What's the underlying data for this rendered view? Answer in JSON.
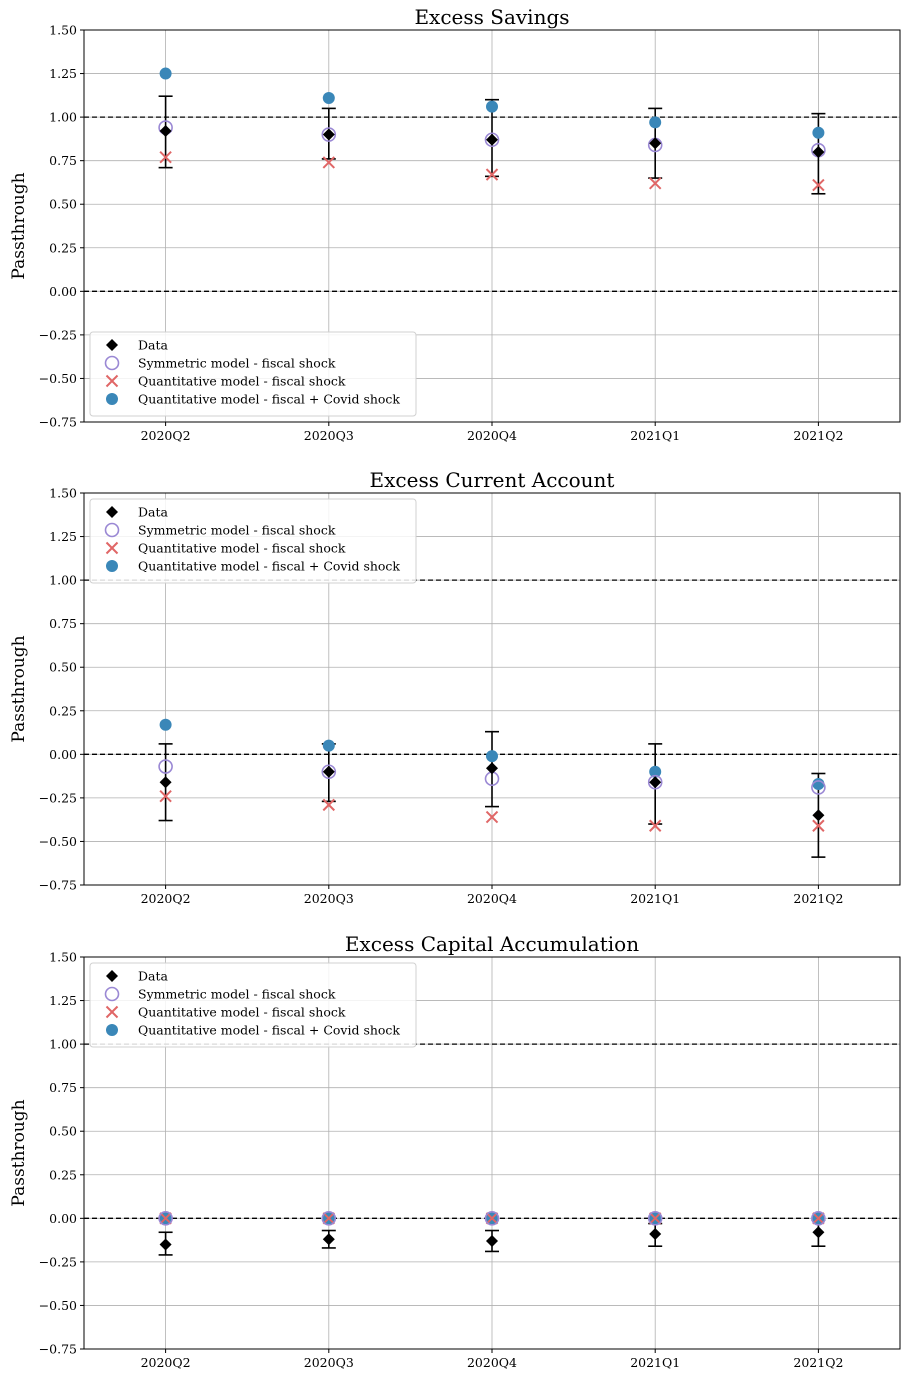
{
  "figure": {
    "legend_labels": [
      "Data",
      "Symmetric model - fiscal shock",
      "Quantitative model - fiscal shock",
      "Quantitative model - fiscal + Covid shock"
    ],
    "colors": {
      "data": "#000000",
      "symmetric": "#9a88d4",
      "quantitative": "#e06666",
      "covid": "#3a87b8",
      "grid": "#b0b0b0"
    }
  },
  "chart_data": [
    {
      "type": "scatter",
      "title": "Excess Savings",
      "ylabel": "Passthrough",
      "xlabel": "",
      "categories": [
        "2020Q2",
        "2020Q3",
        "2020Q4",
        "2021Q1",
        "2021Q2"
      ],
      "ylim": [
        -0.75,
        1.5
      ],
      "yticks": [
        "1.50",
        "1.25",
        "1.00",
        "0.75",
        "0.50",
        "0.25",
        "0.00",
        "−0.25",
        "−0.50",
        "−0.75"
      ],
      "ytick_values": [
        1.5,
        1.25,
        1.0,
        0.75,
        0.5,
        0.25,
        0.0,
        -0.25,
        -0.5,
        -0.75
      ],
      "reference_lines": [
        1.0,
        0.0
      ],
      "grid": true,
      "legend_position": "lower-left",
      "series": [
        {
          "name": "Data",
          "values": [
            0.92,
            0.9,
            0.87,
            0.85,
            0.8
          ],
          "error_low": [
            0.71,
            0.76,
            0.66,
            0.65,
            0.56
          ],
          "error_high": [
            1.12,
            1.05,
            1.1,
            1.05,
            1.02
          ]
        },
        {
          "name": "Symmetric model - fiscal shock",
          "values": [
            0.94,
            0.9,
            0.87,
            0.84,
            0.81
          ]
        },
        {
          "name": "Quantitative model - fiscal shock",
          "values": [
            0.77,
            0.74,
            0.67,
            0.62,
            0.61
          ]
        },
        {
          "name": "Quantitative model - fiscal + Covid shock",
          "values": [
            1.25,
            1.11,
            1.06,
            0.97,
            0.91
          ]
        }
      ]
    },
    {
      "type": "scatter",
      "title": "Excess Current Account",
      "ylabel": "Passthrough",
      "xlabel": "",
      "categories": [
        "2020Q2",
        "2020Q3",
        "2020Q4",
        "2021Q1",
        "2021Q2"
      ],
      "ylim": [
        -0.75,
        1.5
      ],
      "yticks": [
        "1.50",
        "1.25",
        "1.00",
        "0.75",
        "0.50",
        "0.25",
        "0.00",
        "−0.25",
        "−0.50",
        "−0.75"
      ],
      "ytick_values": [
        1.5,
        1.25,
        1.0,
        0.75,
        0.5,
        0.25,
        0.0,
        -0.25,
        -0.5,
        -0.75
      ],
      "reference_lines": [
        1.0,
        0.0
      ],
      "grid": true,
      "legend_position": "upper-left",
      "series": [
        {
          "name": "Data",
          "values": [
            -0.16,
            -0.1,
            -0.08,
            -0.16,
            -0.35
          ],
          "error_low": [
            -0.38,
            -0.27,
            -0.3,
            -0.4,
            -0.59
          ],
          "error_high": [
            0.06,
            0.06,
            0.13,
            0.06,
            -0.11
          ]
        },
        {
          "name": "Symmetric model - fiscal shock",
          "values": [
            -0.07,
            -0.1,
            -0.14,
            -0.16,
            -0.19
          ]
        },
        {
          "name": "Quantitative model - fiscal shock",
          "values": [
            -0.24,
            -0.29,
            -0.36,
            -0.41,
            -0.41
          ]
        },
        {
          "name": "Quantitative model - fiscal + Covid shock",
          "values": [
            0.17,
            0.05,
            -0.01,
            -0.1,
            -0.17
          ]
        }
      ]
    },
    {
      "type": "scatter",
      "title": "Excess Capital Accumulation",
      "ylabel": "Passthrough",
      "xlabel": "",
      "categories": [
        "2020Q2",
        "2020Q3",
        "2020Q4",
        "2021Q1",
        "2021Q2"
      ],
      "ylim": [
        -0.75,
        1.5
      ],
      "yticks": [
        "1.50",
        "1.25",
        "1.00",
        "0.75",
        "0.50",
        "0.25",
        "0.00",
        "−0.25",
        "−0.50",
        "−0.75"
      ],
      "ytick_values": [
        1.5,
        1.25,
        1.0,
        0.75,
        0.5,
        0.25,
        0.0,
        -0.25,
        -0.5,
        -0.75
      ],
      "reference_lines": [
        1.0,
        0.0
      ],
      "grid": true,
      "legend_position": "upper-left",
      "series": [
        {
          "name": "Data",
          "values": [
            -0.15,
            -0.12,
            -0.13,
            -0.09,
            -0.08
          ],
          "error_low": [
            -0.21,
            -0.17,
            -0.19,
            -0.16,
            -0.16
          ],
          "error_high": [
            -0.08,
            -0.07,
            -0.07,
            -0.03,
            -0.01
          ]
        },
        {
          "name": "Symmetric model - fiscal shock",
          "values": [
            0.0,
            0.0,
            0.0,
            0.0,
            0.0
          ]
        },
        {
          "name": "Quantitative model - fiscal shock",
          "values": [
            0.0,
            0.0,
            0.0,
            0.0,
            0.0
          ]
        },
        {
          "name": "Quantitative model - fiscal + Covid shock",
          "values": [
            0.0,
            0.0,
            0.0,
            0.0,
            0.0
          ]
        }
      ]
    }
  ]
}
